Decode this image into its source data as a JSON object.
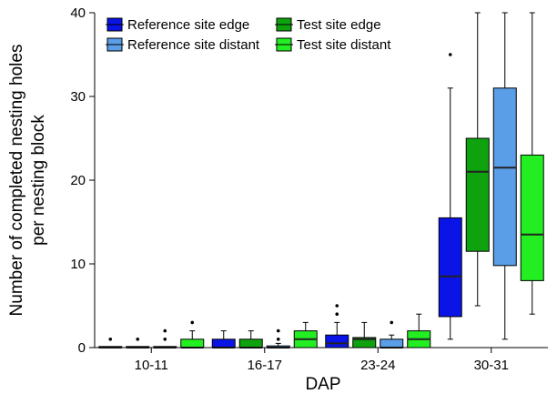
{
  "chart_data": {
    "type": "box",
    "xlabel": "DAP",
    "ylabel_lines": [
      "Number of completed nesting holes",
      "per nesting block"
    ],
    "ylim": [
      0,
      40
    ],
    "yticks": [
      0,
      10,
      20,
      30,
      40
    ],
    "categories": [
      "10-11",
      "16-17",
      "23-24",
      "30-31"
    ],
    "legend_position": "top-left",
    "series": [
      {
        "name": "Reference site edge",
        "color": "#0a14e6",
        "boxes": [
          {
            "category": "10-11",
            "whisker_low": 0,
            "q1": 0,
            "median": 0,
            "q3": 0,
            "whisker_high": 0,
            "outliers": [
              1
            ]
          },
          {
            "category": "16-17",
            "whisker_low": 0,
            "q1": 0,
            "median": 0,
            "q3": 1,
            "whisker_high": 2,
            "outliers": []
          },
          {
            "category": "23-24",
            "whisker_low": 0,
            "q1": 0,
            "median": 0.5,
            "q3": 1.5,
            "whisker_high": 3,
            "outliers": [
              4,
              5
            ]
          },
          {
            "category": "30-31",
            "whisker_low": 1,
            "q1": 3.7,
            "median": 8.5,
            "q3": 15.5,
            "whisker_high": 31,
            "outliers": [
              35
            ]
          }
        ]
      },
      {
        "name": "Test site edge",
        "color": "#0ea30e",
        "boxes": [
          {
            "category": "10-11",
            "whisker_low": 0,
            "q1": 0,
            "median": 0,
            "q3": 0,
            "whisker_high": 0,
            "outliers": [
              1
            ]
          },
          {
            "category": "16-17",
            "whisker_low": 0,
            "q1": 0,
            "median": 0,
            "q3": 1,
            "whisker_high": 2,
            "outliers": []
          },
          {
            "category": "23-24",
            "whisker_low": 0,
            "q1": 0,
            "median": 1,
            "q3": 1.2,
            "whisker_high": 3,
            "outliers": []
          },
          {
            "category": "30-31",
            "whisker_low": 5,
            "q1": 11.5,
            "median": 21,
            "q3": 25,
            "whisker_high": 40,
            "outliers": []
          }
        ]
      },
      {
        "name": "Reference site distant",
        "color": "#5a9ee8",
        "boxes": [
          {
            "category": "10-11",
            "whisker_low": 0,
            "q1": 0,
            "median": 0,
            "q3": 0,
            "whisker_high": 0,
            "outliers": [
              1,
              2
            ]
          },
          {
            "category": "16-17",
            "whisker_low": 0,
            "q1": 0,
            "median": 0,
            "q3": 0.2,
            "whisker_high": 0.5,
            "outliers": [
              1,
              2
            ]
          },
          {
            "category": "23-24",
            "whisker_low": 0,
            "q1": 0,
            "median": 0,
            "q3": 1,
            "whisker_high": 1.5,
            "outliers": [
              3
            ]
          },
          {
            "category": "30-31",
            "whisker_low": 1,
            "q1": 9.8,
            "median": 21.5,
            "q3": 31,
            "whisker_high": 40,
            "outliers": []
          }
        ]
      },
      {
        "name": "Test site distant",
        "color": "#22ee22",
        "boxes": [
          {
            "category": "10-11",
            "whisker_low": 0,
            "q1": 0,
            "median": 0,
            "q3": 1,
            "whisker_high": 2,
            "outliers": [
              3
            ]
          },
          {
            "category": "16-17",
            "whisker_low": 0,
            "q1": 0,
            "median": 1,
            "q3": 2,
            "whisker_high": 3,
            "outliers": []
          },
          {
            "category": "23-24",
            "whisker_low": 0,
            "q1": 0,
            "median": 1,
            "q3": 2,
            "whisker_high": 4,
            "outliers": []
          },
          {
            "category": "30-31",
            "whisker_low": 4,
            "q1": 8,
            "median": 13.5,
            "q3": 23,
            "whisker_high": 40,
            "outliers": []
          }
        ]
      }
    ]
  }
}
